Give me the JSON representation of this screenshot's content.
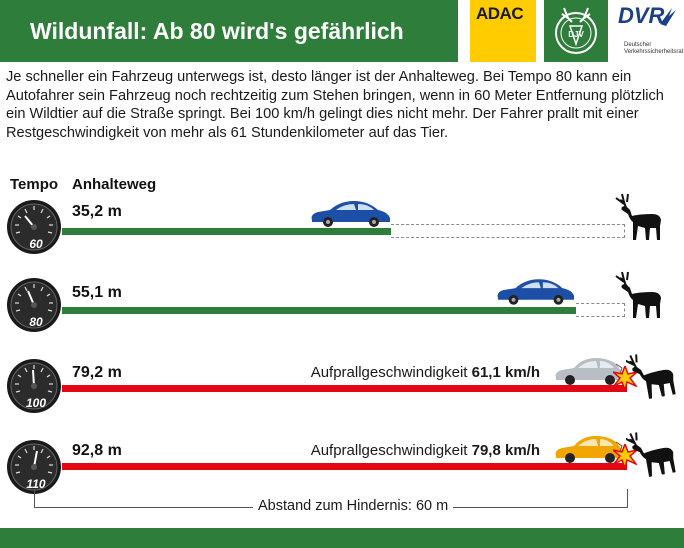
{
  "header": {
    "title": "Wildunfall: Ab 80 wird's gefährlich",
    "color": "#2e7d3a"
  },
  "logos": {
    "adac": "ADAC",
    "dvr": "DVR",
    "dvr_sub": "Deutscher Verkehrssicherheitsrat"
  },
  "intro": "Je schneller ein Fahrzeug unterwegs ist, desto länger ist der Anhalteweg. Bei Tempo 80 kann ein Autofahrer sein Fahrzeug noch rechtzeitig zum Stehen bringen, wenn in 60 Meter Entfernung plötzlich ein Wildtier auf die Straße springt. Bei 100 km/h gelingt dies nicht mehr. Der Fahrer prallt mit einer Restgeschwindigkeit von mehr als 61 Stundenkilometer auf das Tier.",
  "columns": {
    "tempo": "Tempo",
    "anhalteweg": "Anhalteweg"
  },
  "rows": [
    {
      "speed": "60",
      "distance": "35,2 m",
      "state": "stops",
      "impact_label": "",
      "impact_value": ""
    },
    {
      "speed": "80",
      "distance": "55,1 m",
      "state": "stops",
      "impact_label": "",
      "impact_value": ""
    },
    {
      "speed": "100",
      "distance": "79,2 m",
      "state": "collision",
      "impact_label": "Aufprallgeschwindigkeit",
      "impact_value": "61,1 km/h"
    },
    {
      "speed": "110",
      "distance": "92,8 m",
      "state": "collision",
      "impact_label": "Aufprallgeschwindigkeit",
      "impact_value": "79,8 km/h"
    }
  ],
  "footer": {
    "label": "Abstand zum Hindernis: 60 m"
  },
  "colors": {
    "green": "#2e7d3a",
    "red": "#e30613",
    "adac_yellow": "#ffcc00",
    "dvr_blue": "#1c3f8a"
  },
  "icons": [
    "speedometer-icon",
    "car-icon",
    "deer-icon",
    "impact-star-icon"
  ]
}
